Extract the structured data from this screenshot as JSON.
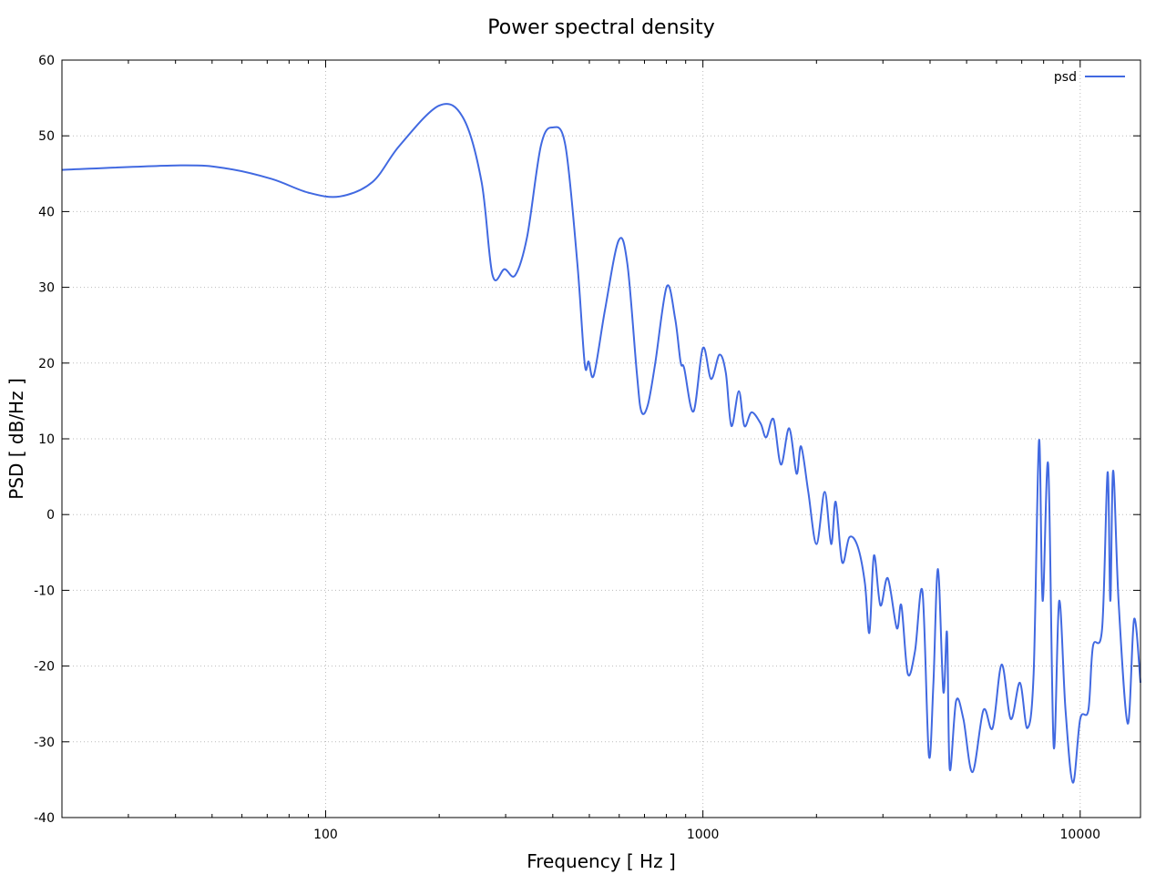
{
  "chart_data": {
    "type": "line",
    "title": "Power spectral density",
    "xlabel": "Frequency [ Hz ]",
    "ylabel": "PSD [ dB/Hz ]",
    "xscale": "log",
    "xlim": [
      20,
      14450
    ],
    "ylim": [
      -40,
      60
    ],
    "xticks": [
      100,
      1000,
      10000
    ],
    "xtick_labels": [
      "100",
      "1000",
      "10000"
    ],
    "yticks": [
      -40,
      -30,
      -20,
      -10,
      0,
      10,
      20,
      30,
      40,
      50,
      60
    ],
    "ytick_labels": [
      "-40",
      "-30",
      "-20",
      "-10",
      "0",
      "10",
      "20",
      "30",
      "40",
      "50",
      "60"
    ],
    "grid": true,
    "legend": {
      "placement": "top-right",
      "entries": [
        "psd"
      ]
    },
    "colors": {
      "psd": "#4169e1"
    },
    "series": [
      {
        "name": "psd",
        "x": [
          20,
          41.2,
          54.5,
          72,
          90,
          109,
          133,
          157,
          200,
          232,
          259,
          277,
          298,
          318,
          342,
          372,
          400,
          432,
          465,
          486,
          498,
          514,
          550,
          598,
          631,
          668,
          687,
          714,
          747,
          802,
          844,
          873,
          892,
          944,
          1000,
          1051,
          1106,
          1150,
          1190,
          1245,
          1288,
          1346,
          1423,
          1471,
          1538,
          1610,
          1693,
          1771,
          1821,
          1902,
          2000,
          2103,
          2187,
          2249,
          2339,
          2445,
          2571,
          2687,
          2763,
          2841,
          2954,
          3090,
          3266,
          3357,
          3491,
          3650,
          3819,
          3972,
          4083,
          4198,
          4339,
          4437,
          4510,
          4690,
          4903,
          5183,
          5542,
          5859,
          6194,
          6548,
          6922,
          7242,
          7527,
          7780,
          7954,
          8228,
          8508,
          8796,
          9142,
          9567,
          10000,
          10511,
          10810,
          11434,
          11823,
          12020,
          12230,
          12640,
          13370,
          13900,
          14450
        ],
        "y": [
          45.5,
          46.1,
          45.7,
          44.3,
          42.5,
          42,
          43.9,
          48.7,
          54,
          52.3,
          43.9,
          31.6,
          32.4,
          31.6,
          36.7,
          48.7,
          51.1,
          48.7,
          33,
          19.9,
          20.2,
          18.4,
          27,
          36.2,
          33,
          18.7,
          13.6,
          14.4,
          19.9,
          30.1,
          25.9,
          20.1,
          19.3,
          13.6,
          22,
          17.9,
          21.1,
          18.7,
          11.7,
          16.3,
          11.7,
          13.5,
          12,
          10.2,
          12.6,
          6.6,
          11.4,
          5.4,
          9,
          3,
          -3.9,
          3,
          -3.9,
          1.7,
          -6.3,
          -3,
          -4.2,
          -9,
          -15.6,
          -5.4,
          -12,
          -8.4,
          -15,
          -12,
          -21,
          -18,
          -10.2,
          -31.8,
          -22.2,
          -7.2,
          -23.4,
          -15.6,
          -33.6,
          -24.6,
          -27,
          -34,
          -25.8,
          -28.2,
          -19.8,
          -27,
          -22.2,
          -28.2,
          -21,
          9.8,
          -11.4,
          6.6,
          -30.6,
          -11.4,
          -25.8,
          -35.4,
          -27,
          -25.8,
          -17.4,
          -15,
          5.6,
          -11.4,
          5.8,
          -11.4,
          -27.6,
          -13.8,
          -22.2
        ]
      }
    ]
  }
}
